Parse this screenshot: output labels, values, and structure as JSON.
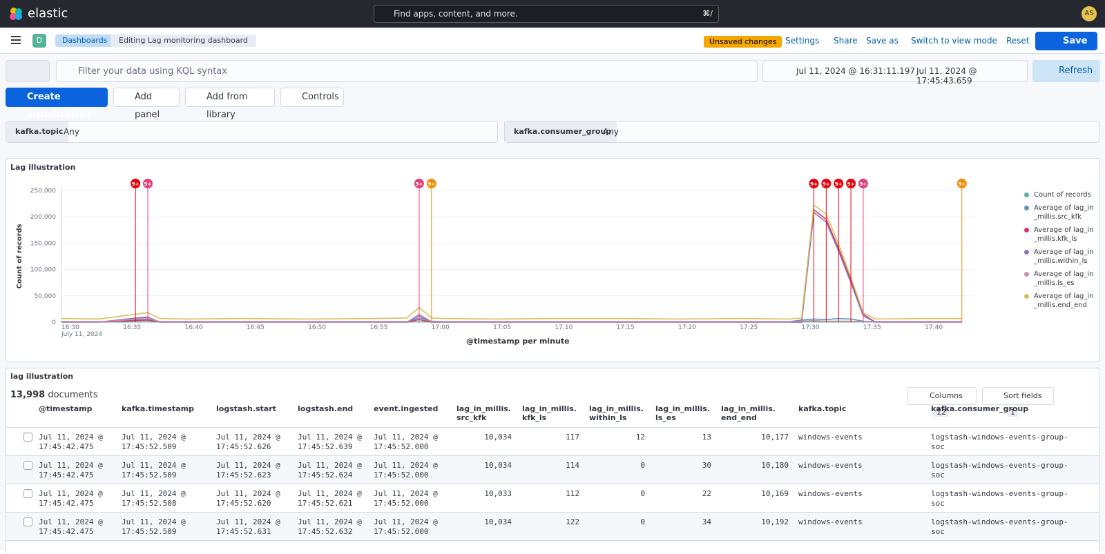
{
  "header": {
    "brand": "elastic",
    "search_placeholder": "Find apps, content, and more.",
    "search_shortcut": "⌘/",
    "avatar": "AS"
  },
  "nav": {
    "space": "D",
    "breadcrumbs": [
      "Dashboards",
      "Editing Lag monitoring dashboard"
    ],
    "badge": "Unsaved changes",
    "actions": [
      "Settings",
      "Share",
      "Save as",
      "Switch to view mode",
      "Reset"
    ],
    "save": "Save"
  },
  "query": {
    "placeholder": "Filter your data using KQL syntax",
    "start": "Jul 11, 2024 @ 16:31:11.197",
    "end": "Jul 11, 2024 @ 17:45:43.659",
    "refresh": "Refresh"
  },
  "toolbar": [
    "Create visualization",
    "Add panel",
    "Add from library",
    "Controls"
  ],
  "controls": [
    {
      "field": "kafka.topic",
      "value": "Any"
    },
    {
      "field": "kafka.consumer_group",
      "value": "Any"
    }
  ],
  "chart_data": {
    "type": "line",
    "title": "Lag illustration",
    "x_label": "@timestamp per minute",
    "x_sublabel": "July 11, 2024",
    "y_label": "Count of records",
    "x": [
      "16:30",
      "16:33",
      "16:36",
      "16:37",
      "16:38",
      "16:40",
      "16:45",
      "16:50",
      "16:55",
      "16:58",
      "16:59",
      "17:00",
      "17:01",
      "17:05",
      "17:10",
      "17:15",
      "17:20",
      "17:25",
      "17:29",
      "17:30",
      "17:31",
      "17:32",
      "17:33",
      "17:34",
      "17:35",
      "17:36",
      "17:40",
      "17:43"
    ],
    "xlim": [
      "16:30",
      "17:44"
    ],
    "xticks": [
      "16:30",
      "16:35",
      "16:40",
      "16:45",
      "16:50",
      "16:55",
      "17:00",
      "17:05",
      "17:10",
      "17:15",
      "17:20",
      "17:25",
      "17:30",
      "17:35",
      "17:40"
    ],
    "ylim": [
      0,
      250000
    ],
    "yticks": [
      0,
      {
        "value": 50000,
        "label": "50,000"
      },
      {
        "value": 100000,
        "label": "100,000"
      },
      {
        "value": 150000,
        "label": "150,000"
      },
      {
        "value": 200000,
        "label": "200,000"
      },
      {
        "value": 250000,
        "label": "250,000"
      }
    ],
    "legend": "right",
    "series": [
      {
        "name": "Count of records",
        "color": "#54b399",
        "values": [
          500,
          500,
          500,
          500,
          500,
          500,
          500,
          500,
          500,
          500,
          500,
          500,
          500,
          500,
          500,
          500,
          500,
          500,
          500,
          500,
          500,
          500,
          500,
          500,
          500,
          500,
          500,
          500
        ]
      },
      {
        "name": "Average of lag_in_millis.src_kfk",
        "color": "#6092c0",
        "values": [
          1000,
          1000,
          4000,
          5000,
          1000,
          1000,
          1000,
          1000,
          1000,
          1000,
          8000,
          2000,
          1000,
          1000,
          1000,
          1000,
          1000,
          1000,
          1000,
          4000,
          6000,
          5000,
          7000,
          6000,
          2000,
          1000,
          1000,
          1000
        ]
      },
      {
        "name": "Average of lag_in_millis.kfk_ls",
        "color": "#d6336c",
        "values": [
          0,
          0,
          3000,
          4000,
          0,
          0,
          0,
          0,
          0,
          0,
          5000,
          0,
          0,
          0,
          0,
          0,
          0,
          0,
          0,
          0,
          213000,
          195000,
          140000,
          80000,
          15000,
          0,
          0,
          0
        ]
      },
      {
        "name": "Average of lag_in_millis.within_ls",
        "color": "#9170b8",
        "values": [
          0,
          0,
          8000,
          10000,
          0,
          0,
          0,
          0,
          0,
          0,
          12000,
          0,
          0,
          0,
          0,
          0,
          0,
          0,
          0,
          0,
          208000,
          190000,
          135000,
          75000,
          12000,
          0,
          0,
          0
        ]
      },
      {
        "name": "Average of lag_in_millis.ls_es",
        "color": "#ca8eae",
        "values": [
          0,
          0,
          6000,
          8000,
          0,
          0,
          0,
          0,
          0,
          0,
          15000,
          1000,
          0,
          0,
          0,
          0,
          0,
          0,
          0,
          2000,
          3000,
          2000,
          2000,
          2000,
          1000,
          0,
          0,
          0
        ]
      },
      {
        "name": "Average of lag_in_millis.end_end",
        "color": "#d6bf57",
        "values": [
          7000,
          6000,
          15000,
          18000,
          7000,
          6000,
          7000,
          6000,
          7000,
          8000,
          28000,
          8000,
          7000,
          6000,
          7000,
          7000,
          6000,
          7000,
          6000,
          8000,
          222000,
          205000,
          148000,
          85000,
          18000,
          6000,
          7000,
          7000
        ]
      }
    ],
    "annotations": [
      {
        "x": "16:36",
        "label": "9+",
        "color": "#e7000b"
      },
      {
        "x": "16:37",
        "label": "9+",
        "color": "#e0407b"
      },
      {
        "x": "16:59",
        "label": "9+",
        "color": "#e0407b"
      },
      {
        "x": "17:00",
        "label": "9+",
        "color": "#f08c00"
      },
      {
        "x": "17:31",
        "label": "9+",
        "color": "#e7000b"
      },
      {
        "x": "17:32",
        "label": "9+",
        "color": "#e7000b"
      },
      {
        "x": "17:33",
        "label": "9+",
        "color": "#e7000b"
      },
      {
        "x": "17:34",
        "label": "9+",
        "color": "#e7000b"
      },
      {
        "x": "17:35",
        "label": "9+",
        "color": "#e0407b"
      },
      {
        "x": "17:43",
        "label": "9+",
        "color": "#f08c00"
      }
    ]
  },
  "table": {
    "title": "lag illustration",
    "count": "13,998",
    "count_label": "documents",
    "columns_button": "Columns",
    "columns_count": "12",
    "sort_button": "Sort fields",
    "sort_count": "1",
    "headers": [
      "@timestamp",
      "kafka.timestamp",
      "logstash.start",
      "logstash.end",
      "event.ingested",
      "lag_in_millis.src_kfk",
      "lag_in_millis.kfk_ls",
      "lag_in_millis.within_ls",
      "lag_in_millis.ls_es",
      "lag_in_millis.end_end",
      "kafka.topic",
      "kafka.consumer_group"
    ],
    "rows": [
      [
        "Jul 11, 2024 @ 17:45:42.475",
        "Jul 11, 2024 @ 17:45:52.509",
        "Jul 11, 2024 @ 17:45:52.626",
        "Jul 11, 2024 @ 17:45:52.639",
        "Jul 11, 2024 @ 17:45:52.000",
        "10,034",
        "117",
        "12",
        "13",
        "10,177",
        "windows-events",
        "logstash-windows-events-group-soc"
      ],
      [
        "Jul 11, 2024 @ 17:45:42.475",
        "Jul 11, 2024 @ 17:45:52.509",
        "Jul 11, 2024 @ 17:45:52.623",
        "Jul 11, 2024 @ 17:45:52.624",
        "Jul 11, 2024 @ 17:45:52.000",
        "10,034",
        "114",
        "0",
        "30",
        "10,180",
        "windows-events",
        "logstash-windows-events-group-soc"
      ],
      [
        "Jul 11, 2024 @ 17:45:42.475",
        "Jul 11, 2024 @ 17:45:52.508",
        "Jul 11, 2024 @ 17:45:52.620",
        "Jul 11, 2024 @ 17:45:52.621",
        "Jul 11, 2024 @ 17:45:52.000",
        "10,033",
        "112",
        "0",
        "22",
        "10,169",
        "windows-events",
        "logstash-windows-events-group-soc"
      ],
      [
        "Jul 11, 2024 @ 17:45:42.475",
        "Jul 11, 2024 @ 17:45:52.509",
        "Jul 11, 2024 @ 17:45:52.631",
        "Jul 11, 2024 @ 17:45:52.632",
        "Jul 11, 2024 @ 17:45:52.000",
        "10,034",
        "122",
        "0",
        "34",
        "10,192",
        "windows-events",
        "logstash-windows-events-group-soc"
      ]
    ]
  }
}
